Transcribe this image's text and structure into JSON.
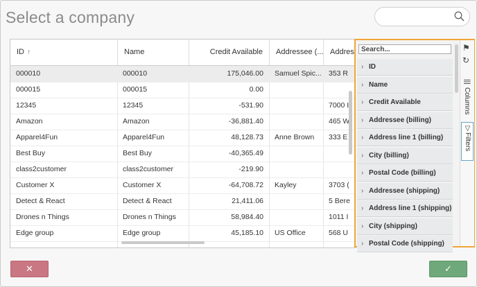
{
  "dialog": {
    "title": "Select a company"
  },
  "search": {
    "placeholder": ""
  },
  "grid": {
    "headers": [
      "ID",
      "Name",
      "Credit Available",
      "Addressee (...",
      "Address"
    ],
    "rows": [
      [
        "000010",
        "000010",
        "175,046.00",
        "Samuel Spic...",
        "353 R"
      ],
      [
        "000015",
        "000015",
        "0.00",
        "",
        ""
      ],
      [
        "12345",
        "12345",
        "-531.90",
        "",
        "7000 I"
      ],
      [
        "Amazon",
        "Amazon",
        "-36,881.40",
        "",
        "465 W"
      ],
      [
        "Apparel4Fun",
        "Apparel4Fun",
        "48,128.73",
        "Anne Brown",
        "333 E"
      ],
      [
        "Best Buy",
        "Best Buy",
        "-40,365.49",
        "",
        ""
      ],
      [
        "class2customer",
        "class2customer",
        "-219.90",
        "",
        ""
      ],
      [
        "Customer X",
        "Customer X",
        "-64,708.72",
        "Kayley",
        "3703 ("
      ],
      [
        "Detect & React",
        "Detect & React",
        "21,411.06",
        "",
        "5 Bere"
      ],
      [
        "Drones n Things",
        "Drones n Things",
        "58,984.40",
        "",
        "1011 I"
      ],
      [
        "Edge group",
        "Edge group",
        "45,185.10",
        "US Office",
        "568 U"
      ]
    ]
  },
  "panel": {
    "search_placeholder": "Search...",
    "fields": [
      "ID",
      "Name",
      "Credit Available",
      "Addressee (billing)",
      "Address line 1 (billing)",
      "City (billing)",
      "Postal Code (billing)",
      "Addressee (shipping)",
      "Address line 1 (shipping)",
      "City (shipping)",
      "Postal Code (shipping)"
    ],
    "tabs": {
      "columns": "Columns",
      "filters": "Filters"
    }
  },
  "buttons": {
    "cancel": "✕",
    "ok": "✓"
  },
  "colors": {
    "panel_border": "#f0a637",
    "cancel": "#c97782",
    "ok": "#6fa87b"
  }
}
